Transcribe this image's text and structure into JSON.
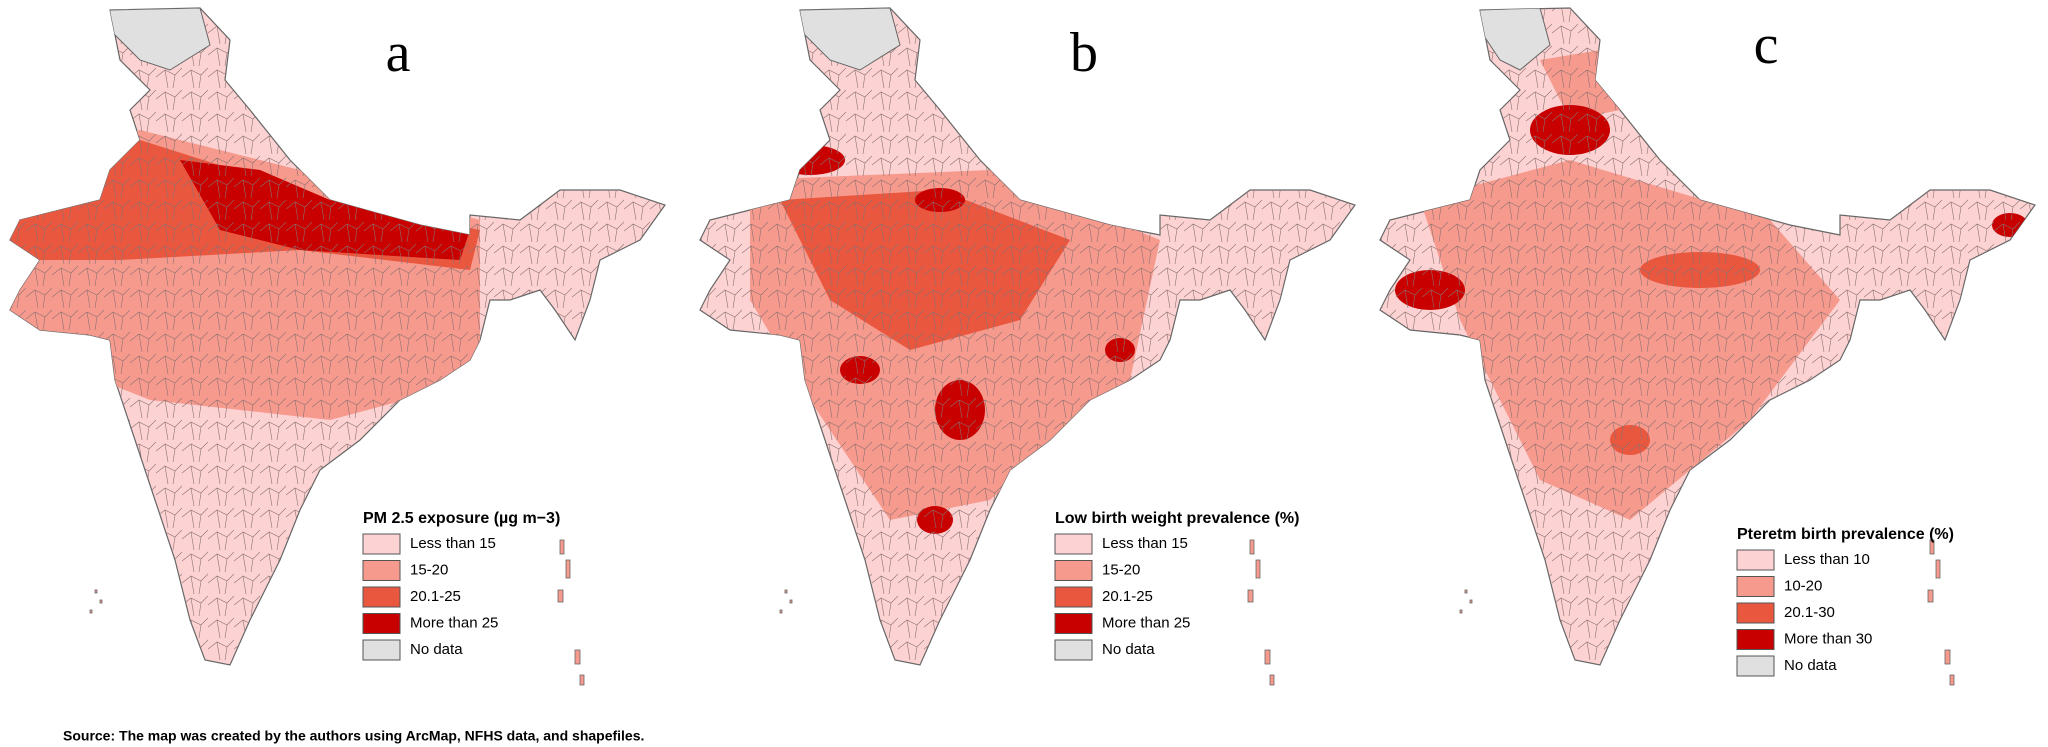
{
  "panels": [
    {
      "label": "a",
      "legend": {
        "title": "PM 2.5 exposure (µg m−3)",
        "items": [
          {
            "label": "Less than 15",
            "color": "#fcd2d2"
          },
          {
            "label": "15-20",
            "color": "#f79a8e"
          },
          {
            "label": "20.1-25",
            "color": "#e9573f"
          },
          {
            "label": "More than 25",
            "color": "#c80000"
          },
          {
            "label": "No data",
            "color": "#e0e0e0"
          }
        ]
      }
    },
    {
      "label": "b",
      "legend": {
        "title": "Low birth weight prevalence (%)",
        "items": [
          {
            "label": "Less than 15",
            "color": "#fcd2d2"
          },
          {
            "label": "15-20",
            "color": "#f79a8e"
          },
          {
            "label": "20.1-25",
            "color": "#e9573f"
          },
          {
            "label": "More than 25",
            "color": "#c80000"
          },
          {
            "label": "No data",
            "color": "#e0e0e0"
          }
        ]
      }
    },
    {
      "label": "c",
      "legend": {
        "title": "Pteretm birth prevalence (%)",
        "items": [
          {
            "label": "Less than 10",
            "color": "#fcd2d2"
          },
          {
            "label": "10-20",
            "color": "#f79a8e"
          },
          {
            "label": "20.1-30",
            "color": "#e9573f"
          },
          {
            "label": "More than 30",
            "color": "#c80000"
          },
          {
            "label": "No data",
            "color": "#e0e0e0"
          }
        ]
      }
    }
  ],
  "source": "Source: The map was created by the authors using ArcMap, NFHS data, and shapefiles."
}
